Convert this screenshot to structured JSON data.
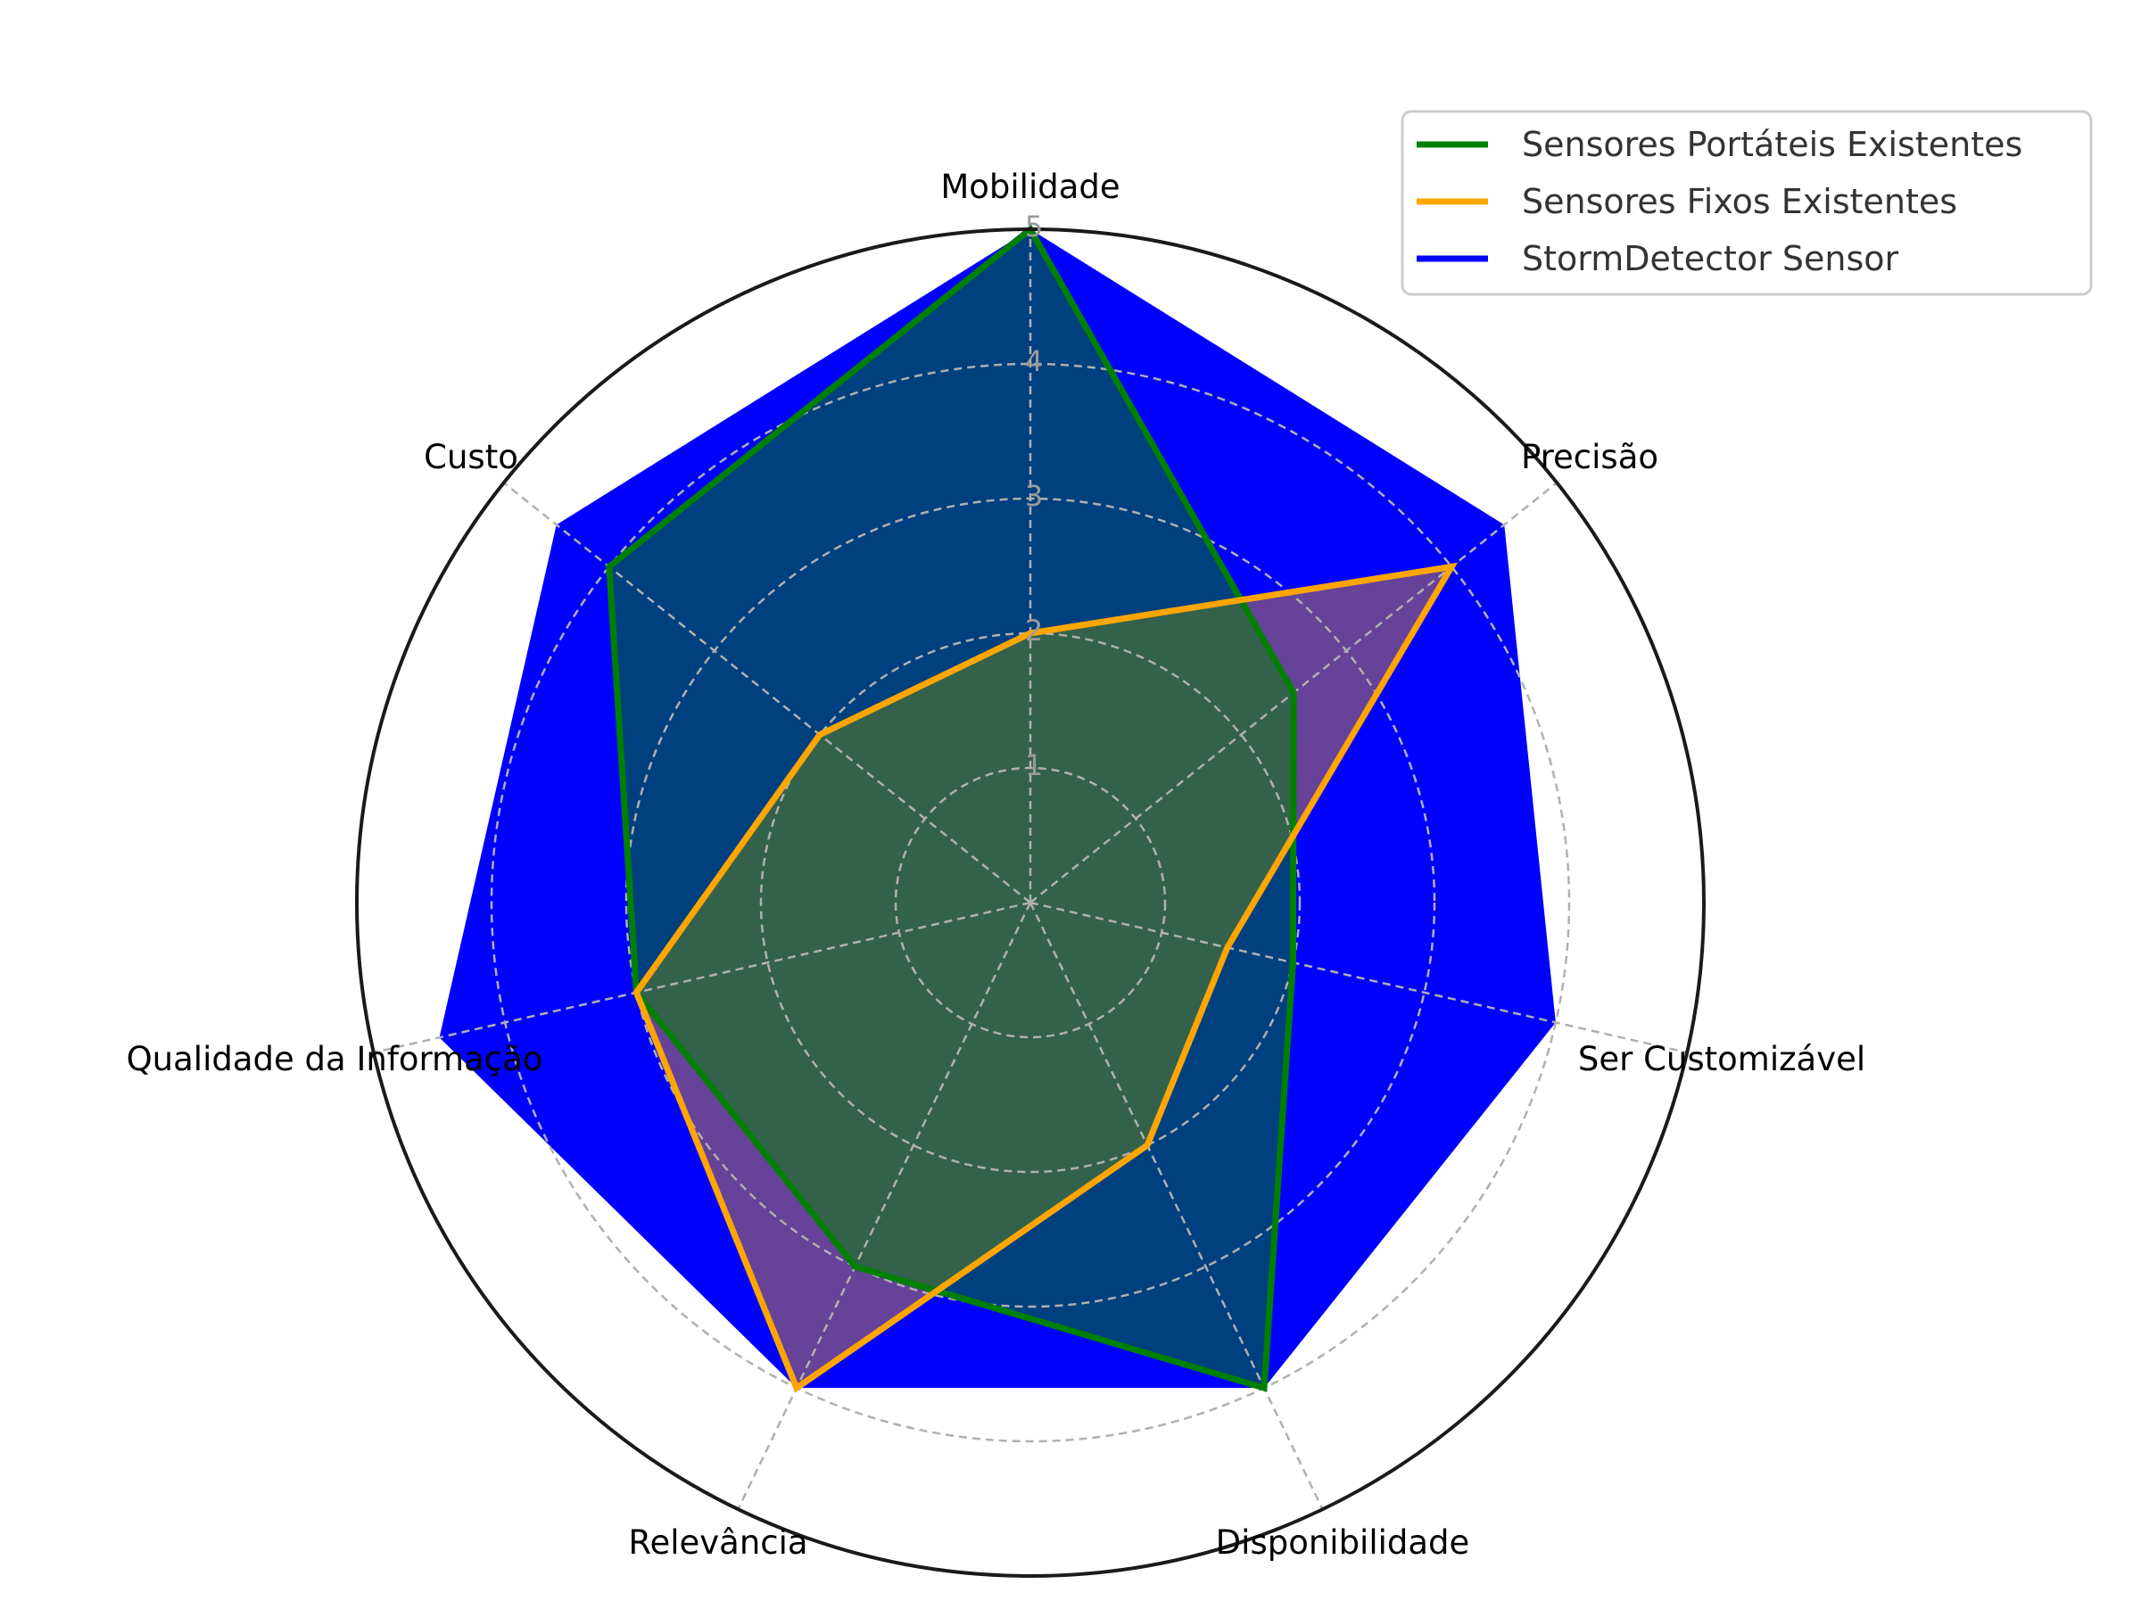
{
  "chart_data": {
    "type": "radar",
    "axes": [
      "Mobilidade",
      "Precisão",
      "Ser Customizável",
      "Disponibilidade",
      "Relevância",
      "Qualidade da Informação",
      "Custo"
    ],
    "rlim": [
      0,
      5
    ],
    "rticks": [
      "1",
      "2",
      "3",
      "4",
      "5"
    ],
    "grid": true,
    "legend_position": "top-right",
    "series": [
      {
        "name": "Sensores Portáteis Existentes",
        "color": "#008000",
        "values": [
          5,
          2.5,
          2,
          4,
          3,
          3,
          4
        ]
      },
      {
        "name": "Sensores Fixos Existentes",
        "color": "#FFA500",
        "values": [
          2,
          4,
          1.5,
          2,
          4,
          3,
          2
        ]
      },
      {
        "name": "StormDetector Sensor",
        "color": "#0000FF",
        "values": [
          5,
          4.5,
          4,
          4,
          4,
          4.5,
          4.5
        ]
      }
    ]
  }
}
